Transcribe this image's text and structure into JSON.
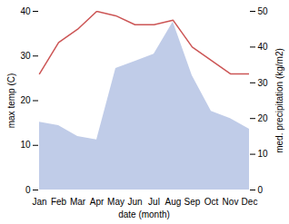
{
  "chart_data": {
    "type": "line",
    "categories": [
      "Jan",
      "Feb",
      "Mar",
      "Apr",
      "May",
      "Jun",
      "Jul",
      "Aug",
      "Sep",
      "Oct",
      "Nov",
      "Dec"
    ],
    "xlabel": "date (month)",
    "ylabel": "max temp (C)",
    "y2label": "med. precipitation (kg/m2)",
    "ylim": [
      0,
      40
    ],
    "yticks": [
      0,
      10,
      20,
      30,
      40
    ],
    "y2lim": [
      0,
      50
    ],
    "y2ticks": [
      0,
      10,
      20,
      30,
      40,
      50
    ],
    "series": [
      {
        "type": "area",
        "axis": "y2",
        "color": "#c0cce8",
        "values": [
          19,
          18,
          15,
          14,
          34,
          36,
          38,
          47,
          32,
          22,
          20,
          17
        ]
      },
      {
        "type": "line",
        "color": "#cc5555",
        "values": [
          26,
          33,
          36,
          40,
          39,
          37,
          37,
          38,
          32,
          29,
          26,
          26
        ]
      }
    ]
  }
}
